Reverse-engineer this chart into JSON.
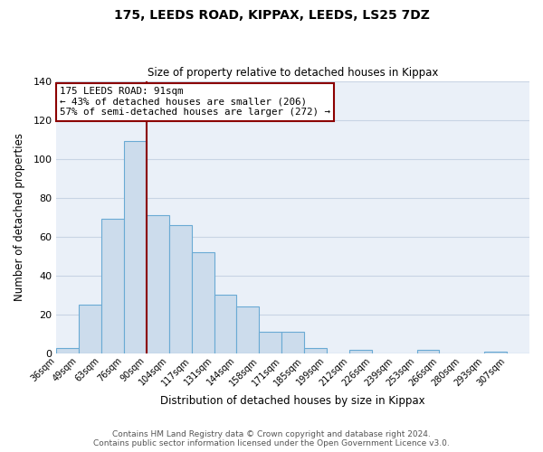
{
  "title": "175, LEEDS ROAD, KIPPAX, LEEDS, LS25 7DZ",
  "subtitle": "Size of property relative to detached houses in Kippax",
  "xlabel": "Distribution of detached houses by size in Kippax",
  "ylabel": "Number of detached properties",
  "bar_color": "#ccdcec",
  "bar_edge_color": "#6aaad4",
  "grid_color": "#c8d4e4",
  "background_color": "#eaf0f8",
  "bin_labels": [
    "36sqm",
    "49sqm",
    "63sqm",
    "76sqm",
    "90sqm",
    "104sqm",
    "117sqm",
    "131sqm",
    "144sqm",
    "158sqm",
    "171sqm",
    "185sqm",
    "199sqm",
    "212sqm",
    "226sqm",
    "239sqm",
    "253sqm",
    "266sqm",
    "280sqm",
    "293sqm",
    "307sqm"
  ],
  "bin_edges": [
    0,
    1,
    2,
    3,
    4,
    5,
    6,
    7,
    8,
    9,
    10,
    11,
    12,
    13,
    14,
    15,
    16,
    17,
    18,
    19,
    20
  ],
  "counts": [
    3,
    25,
    69,
    109,
    71,
    66,
    52,
    30,
    24,
    11,
    11,
    3,
    0,
    2,
    0,
    0,
    2,
    0,
    0,
    1,
    0
  ],
  "ylim": [
    0,
    140
  ],
  "yticks": [
    0,
    20,
    40,
    60,
    80,
    100,
    120,
    140
  ],
  "vline_x": 4,
  "annotation_text_line1": "175 LEEDS ROAD: 91sqm",
  "annotation_text_line2": "← 43% of detached houses are smaller (206)",
  "annotation_text_line3": "57% of semi-detached houses are larger (272) →",
  "vline_color": "#8b0000",
  "annotation_box_edge_color": "#8b0000",
  "footer_line1": "Contains HM Land Registry data © Crown copyright and database right 2024.",
  "footer_line2": "Contains public sector information licensed under the Open Government Licence v3.0.",
  "footer_fontsize": 6.5
}
